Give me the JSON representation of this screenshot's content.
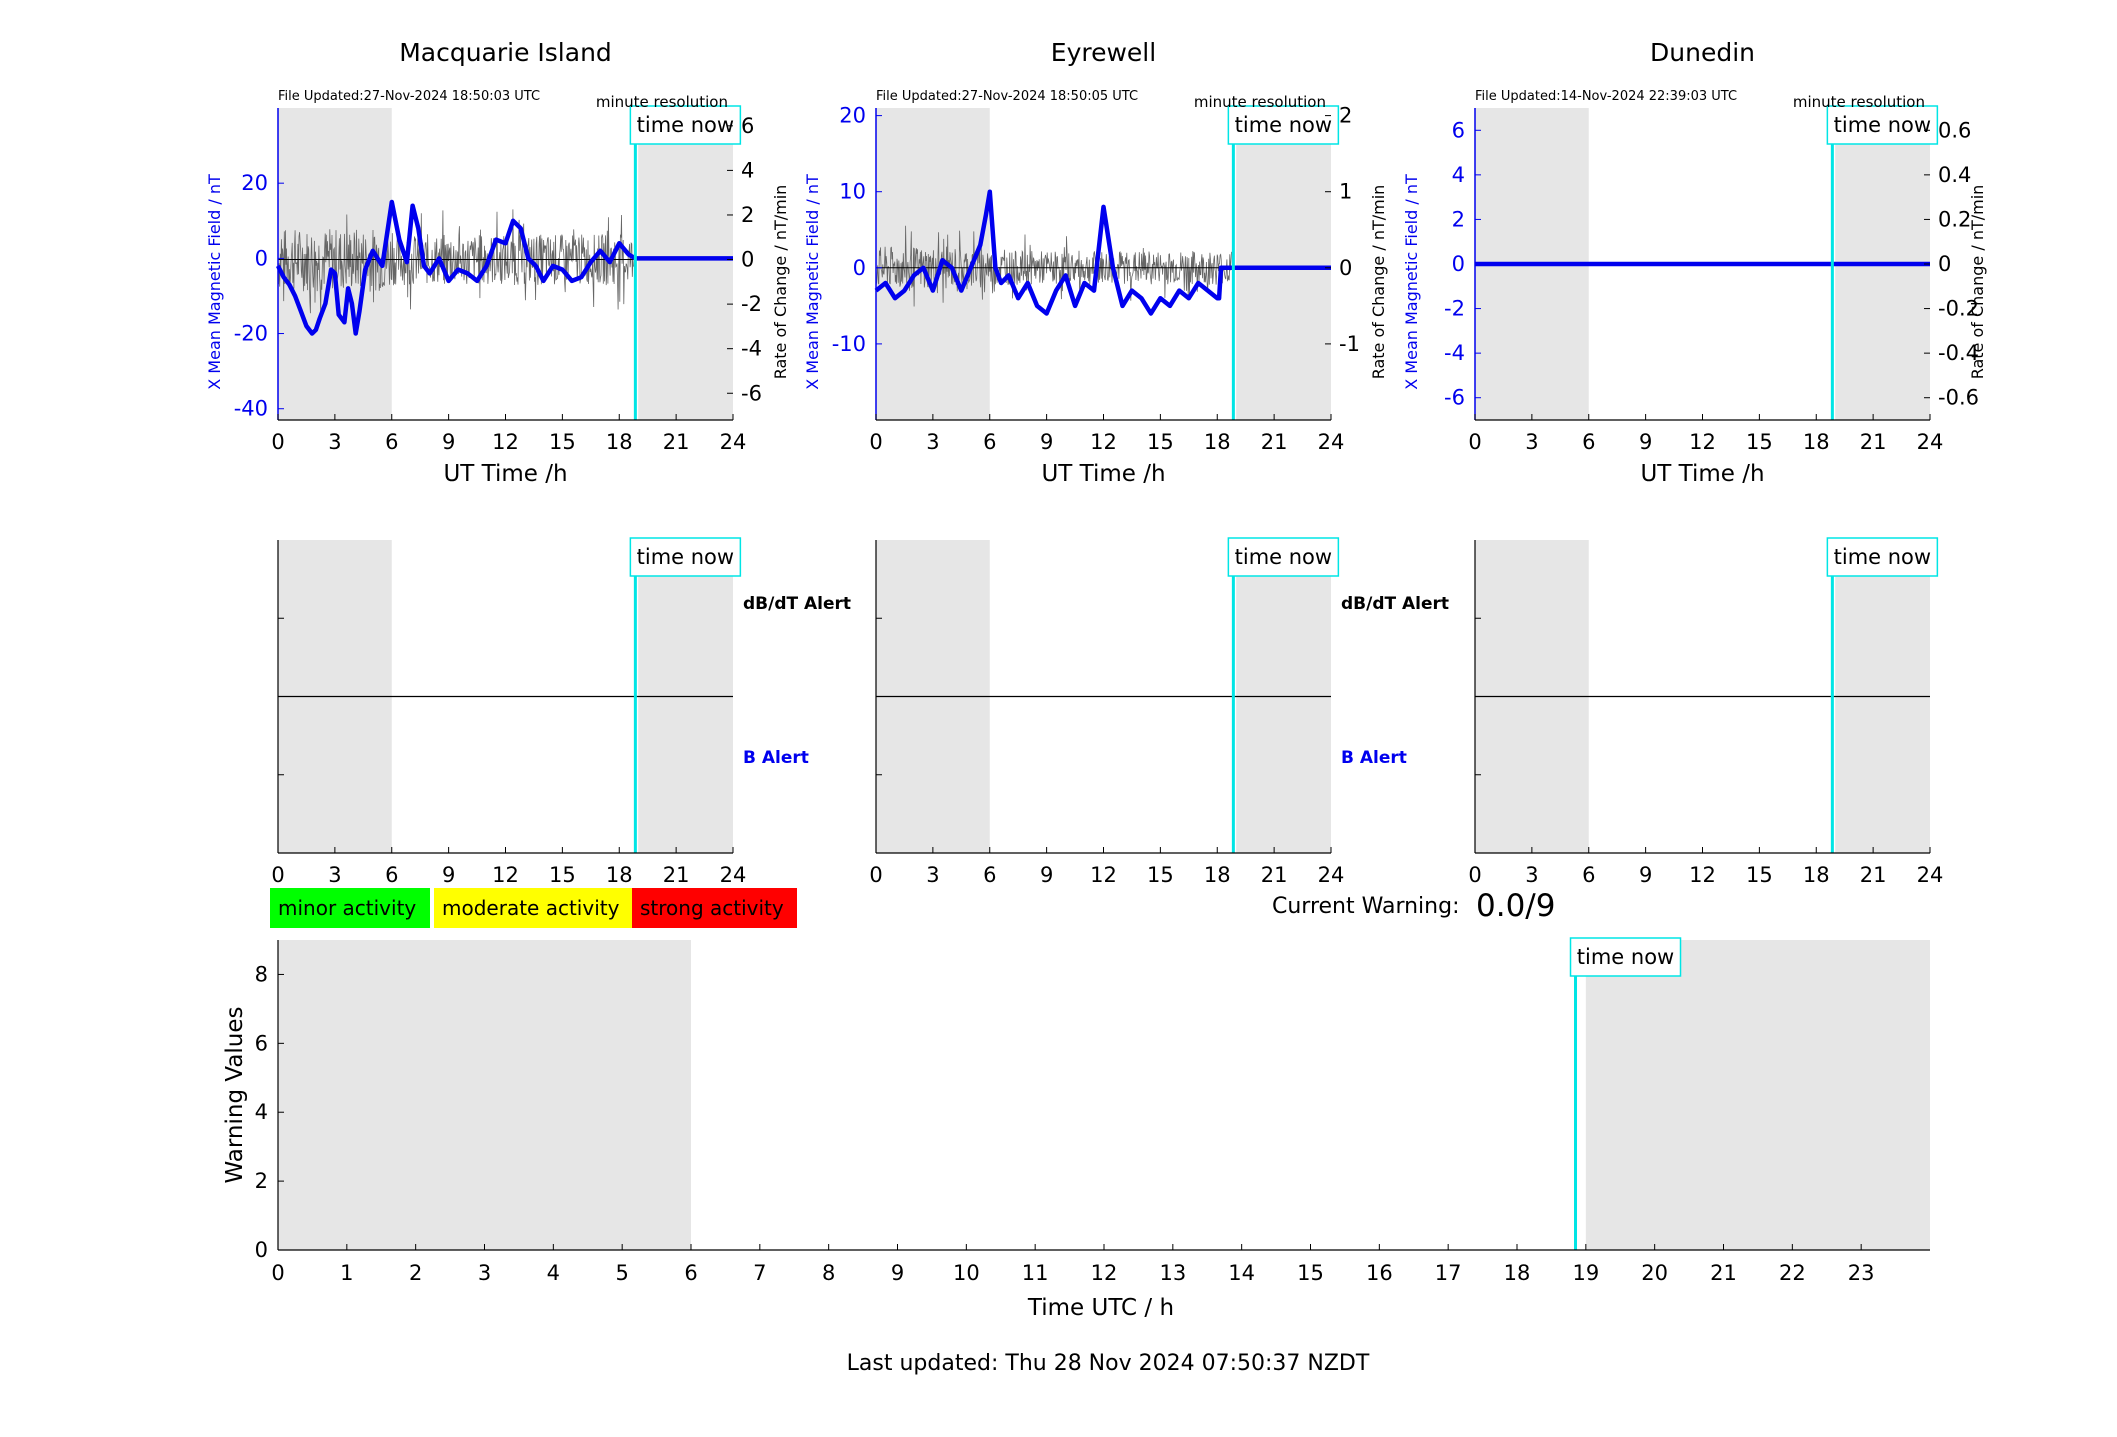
{
  "figure": {
    "last_updated": "Last updated: Thu 28 Nov 2024 07:50:37 NZDT",
    "time_now_label": "time now",
    "ut_xlabel": "UT Time /h",
    "rate_ylabel": "Rate of Change / nT/min",
    "field_ylabel": "X Mean Magnetic Field / nT",
    "minute_resolution": "minute resolution",
    "dbdt_alert": "dB/dT Alert",
    "b_alert": "B Alert",
    "current_warning_label": "Current Warning:",
    "current_warning_value": "0.0/9",
    "colors": {
      "field": "#0000ee",
      "rate": "#666666",
      "now_line": "#00e5e5",
      "shade": "#e6e6e6",
      "minor": "#00ff00",
      "moderate": "#ffff00",
      "strong": "#ff0000"
    }
  },
  "legend": [
    {
      "label": "minor activity",
      "color": "#00ff00"
    },
    {
      "label": "moderate activity",
      "color": "#ffff00"
    },
    {
      "label": "strong activity",
      "color": "#ff0000"
    }
  ],
  "chart_data": [
    {
      "type": "line",
      "title": "Macquarie Island",
      "file_updated": "File Updated:27-Nov-2024 18:50:03 UTC",
      "x_range": [
        0,
        24
      ],
      "x_ticks": [
        0,
        3,
        6,
        9,
        12,
        15,
        18,
        21,
        24
      ],
      "y_left_range": [
        -43,
        40
      ],
      "y_left_ticks": [
        -40,
        -20,
        0,
        20
      ],
      "y_right_range": [
        -7.2,
        6.8
      ],
      "y_right_ticks": [
        -6,
        -4,
        -2,
        0,
        2,
        4,
        6
      ],
      "shade_x": [
        [
          0,
          6
        ],
        [
          19,
          24
        ]
      ],
      "time_now": 18.85,
      "field_series": {
        "name": "X Mean Magnetic Field",
        "x": [
          0,
          0.3,
          0.6,
          0.9,
          1.2,
          1.5,
          1.8,
          2.0,
          2.2,
          2.5,
          2.8,
          3.0,
          3.2,
          3.5,
          3.7,
          3.9,
          4.1,
          4.3,
          4.6,
          5.0,
          5.5,
          6.0,
          6.4,
          6.8,
          7.1,
          7.4,
          7.7,
          8.0,
          8.5,
          9.0,
          9.5,
          10.0,
          10.5,
          11.0,
          11.5,
          12.0,
          12.4,
          12.8,
          13.2,
          13.6,
          14.0,
          14.5,
          15.0,
          15.5,
          16.0,
          16.5,
          17.0,
          17.5,
          18.0,
          18.5,
          18.85,
          19,
          24
        ],
        "y": [
          -2,
          -5,
          -7,
          -10,
          -14,
          -18,
          -20,
          -19,
          -16,
          -12,
          -3,
          -4,
          -15,
          -17,
          -8,
          -12,
          -20,
          -14,
          -3,
          2,
          -2,
          15,
          5,
          -1,
          14,
          8,
          -2,
          -4,
          0,
          -6,
          -3,
          -4,
          -6,
          -2,
          5,
          4,
          10,
          8,
          0,
          -2,
          -6,
          -2,
          -3,
          -6,
          -5,
          -1,
          2,
          -1,
          4,
          1,
          0,
          0,
          0
        ]
      },
      "rate_amplitude": 1.8
    },
    {
      "type": "line",
      "title": "Eyrewell",
      "file_updated": "File Updated:27-Nov-2024 18:50:05 UTC",
      "x_range": [
        0,
        24
      ],
      "x_ticks": [
        0,
        3,
        6,
        9,
        12,
        15,
        18,
        21,
        24
      ],
      "y_left_range": [
        -20,
        21
      ],
      "y_left_ticks": [
        -10,
        0,
        10,
        20
      ],
      "y_right_range": [
        -2,
        2.1
      ],
      "y_right_ticks": [
        -1,
        0,
        1,
        2
      ],
      "shade_x": [
        [
          0,
          6
        ],
        [
          19,
          24
        ]
      ],
      "time_now": 18.85,
      "field_series": {
        "name": "X Mean Magnetic Field",
        "x": [
          0,
          0.5,
          1.0,
          1.5,
          2.0,
          2.5,
          3.0,
          3.5,
          4.0,
          4.5,
          5.0,
          5.5,
          5.8,
          6.0,
          6.3,
          6.6,
          7.0,
          7.5,
          8.0,
          8.5,
          9.0,
          9.5,
          10.0,
          10.5,
          11.0,
          11.5,
          12.0,
          12.5,
          13.0,
          13.5,
          14.0,
          14.5,
          15.0,
          15.5,
          16.0,
          16.5,
          17.0,
          17.5,
          18.0,
          18.1,
          18.2,
          18.85,
          24
        ],
        "y": [
          -3,
          -2,
          -4,
          -3,
          -1,
          0,
          -3,
          1,
          0,
          -3,
          0,
          3,
          7,
          10,
          0,
          -2,
          -1,
          -4,
          -2,
          -5,
          -6,
          -3,
          -1,
          -5,
          -2,
          -3,
          8,
          0,
          -5,
          -3,
          -4,
          -6,
          -4,
          -5,
          -3,
          -4,
          -2,
          -3,
          -4,
          -4,
          0,
          0,
          0
        ]
      },
      "rate_amplitude": 0.35
    },
    {
      "type": "line",
      "title": "Dunedin",
      "file_updated": "File Updated:14-Nov-2024 22:39:03 UTC",
      "x_range": [
        0,
        24
      ],
      "x_ticks": [
        0,
        3,
        6,
        9,
        12,
        15,
        18,
        21,
        24
      ],
      "y_left_range": [
        -7,
        7
      ],
      "y_left_ticks": [
        -6,
        -4,
        -2,
        0,
        2,
        4,
        6
      ],
      "y_right_range": [
        -0.7,
        0.7
      ],
      "y_right_ticks": [
        -0.6,
        -0.4,
        -0.2,
        0,
        0.2,
        0.4,
        0.6
      ],
      "shade_x": [
        [
          0,
          6
        ],
        [
          19,
          24
        ]
      ],
      "time_now": 18.85,
      "field_series": {
        "name": "X Mean Magnetic Field",
        "x": [
          0,
          24
        ],
        "y": [
          0,
          0
        ]
      },
      "rate_amplitude": 0
    },
    {
      "type": "bar",
      "title": "",
      "xlabel": "Time UTC / h",
      "ylabel": "Warning Values",
      "x_range": [
        0,
        24
      ],
      "x_ticks": [
        0,
        1,
        2,
        3,
        4,
        5,
        6,
        7,
        8,
        9,
        10,
        11,
        12,
        13,
        14,
        15,
        16,
        17,
        18,
        19,
        20,
        21,
        22,
        23
      ],
      "ylim": [
        0,
        9
      ],
      "y_ticks": [
        0,
        2,
        4,
        6,
        8
      ],
      "shade_x": [
        [
          0,
          6
        ],
        [
          19,
          24
        ]
      ],
      "time_now": 18.85,
      "values": []
    }
  ]
}
